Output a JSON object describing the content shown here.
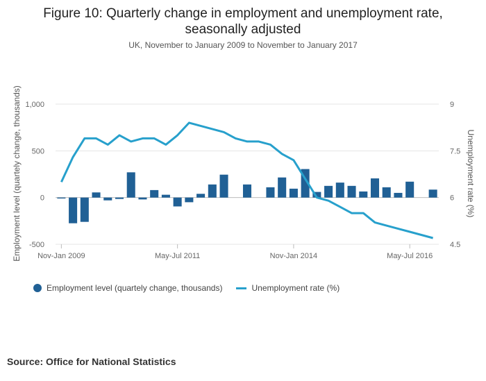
{
  "chart_data": {
    "type": "bar+line",
    "title_line1": "Figure 10: Quarterly change in employment and unemployment rate,",
    "title_line2": "seasonally adjusted",
    "subtitle": "UK, November to January 2009 to November to January 2017",
    "y_left": {
      "label": "Employment level (quartely change, thousands)",
      "min": -500,
      "max": 1000,
      "ticks": [
        -500,
        0,
        500,
        1000
      ],
      "tick_labels": [
        "-500",
        "0",
        "500",
        "1,000"
      ]
    },
    "y_right": {
      "label": "Unemployment rate (%)",
      "min": 4.5,
      "max": 9,
      "ticks": [
        4.5,
        6,
        7.5,
        9
      ],
      "tick_labels": [
        "4.5",
        "6",
        "7.5",
        "9"
      ]
    },
    "x_ticks": [
      {
        "index": 0,
        "label": "Nov-Jan 2009"
      },
      {
        "index": 10,
        "label": "May-Jul 2011"
      },
      {
        "index": 20,
        "label": "Nov-Jan 2014"
      },
      {
        "index": 30,
        "label": "May-Jul 2016"
      }
    ],
    "periods": 33,
    "series": [
      {
        "name": "Employment level (quartely change, thousands)",
        "type": "bar",
        "color": "#206095",
        "values": [
          -10,
          -275,
          -260,
          55,
          -30,
          -15,
          270,
          -20,
          80,
          30,
          -95,
          -50,
          40,
          140,
          245,
          0,
          140,
          0,
          110,
          215,
          95,
          305,
          60,
          125,
          160,
          125,
          65,
          205,
          110,
          50,
          170,
          0,
          85
        ]
      },
      {
        "name": "Unemployment rate (%)",
        "type": "line",
        "color": "#27A0CC",
        "values": [
          6.5,
          7.3,
          7.9,
          7.9,
          7.7,
          8.0,
          7.8,
          7.9,
          7.9,
          7.7,
          8.0,
          8.4,
          8.3,
          8.2,
          8.1,
          7.9,
          7.8,
          7.8,
          7.7,
          7.4,
          7.2,
          6.6,
          6.0,
          5.9,
          5.7,
          5.5,
          5.5,
          5.2,
          5.1,
          5.0,
          4.9,
          4.8,
          4.7
        ]
      }
    ],
    "grid": true,
    "legend_position": "bottom-left"
  },
  "legend": {
    "bar_label": "Employment level (quartely change, thousands)",
    "line_label": "Unemployment rate (%)"
  },
  "source": "Source: Office for National Statistics"
}
